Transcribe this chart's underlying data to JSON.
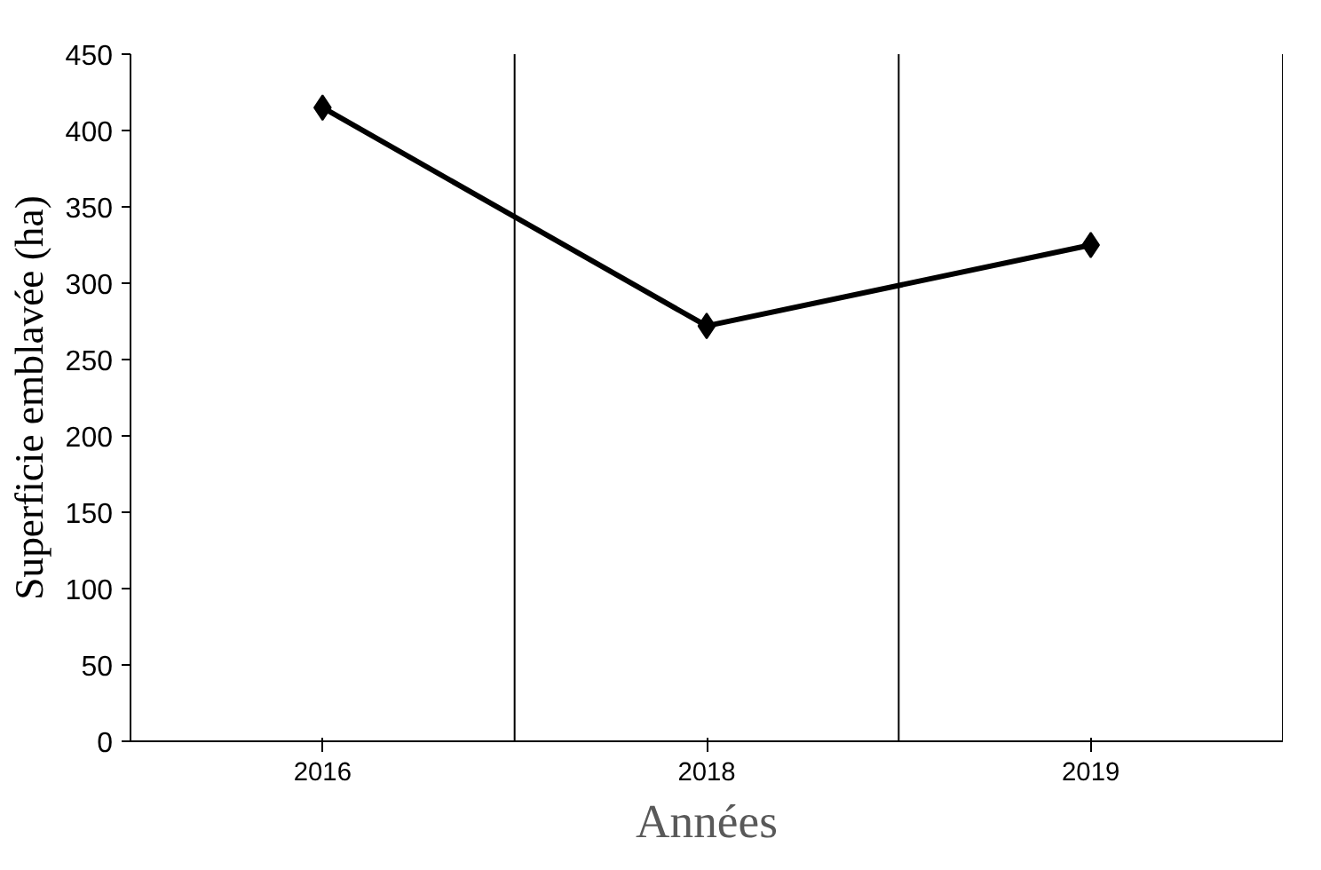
{
  "chart_data": {
    "type": "line",
    "xlabel": "Années",
    "ylabel": "Superficie emblavée (ha)",
    "categories": [
      "2016",
      "2018",
      "2019"
    ],
    "series": [
      {
        "color": "#000000",
        "values": [
          415,
          272,
          325
        ]
      }
    ],
    "ylim": [
      0,
      450
    ],
    "yticks": [
      0,
      50,
      100,
      150,
      200,
      250,
      300,
      350,
      400,
      450
    ],
    "grid": "x",
    "marker": "diamond",
    "line_style": "solid"
  }
}
